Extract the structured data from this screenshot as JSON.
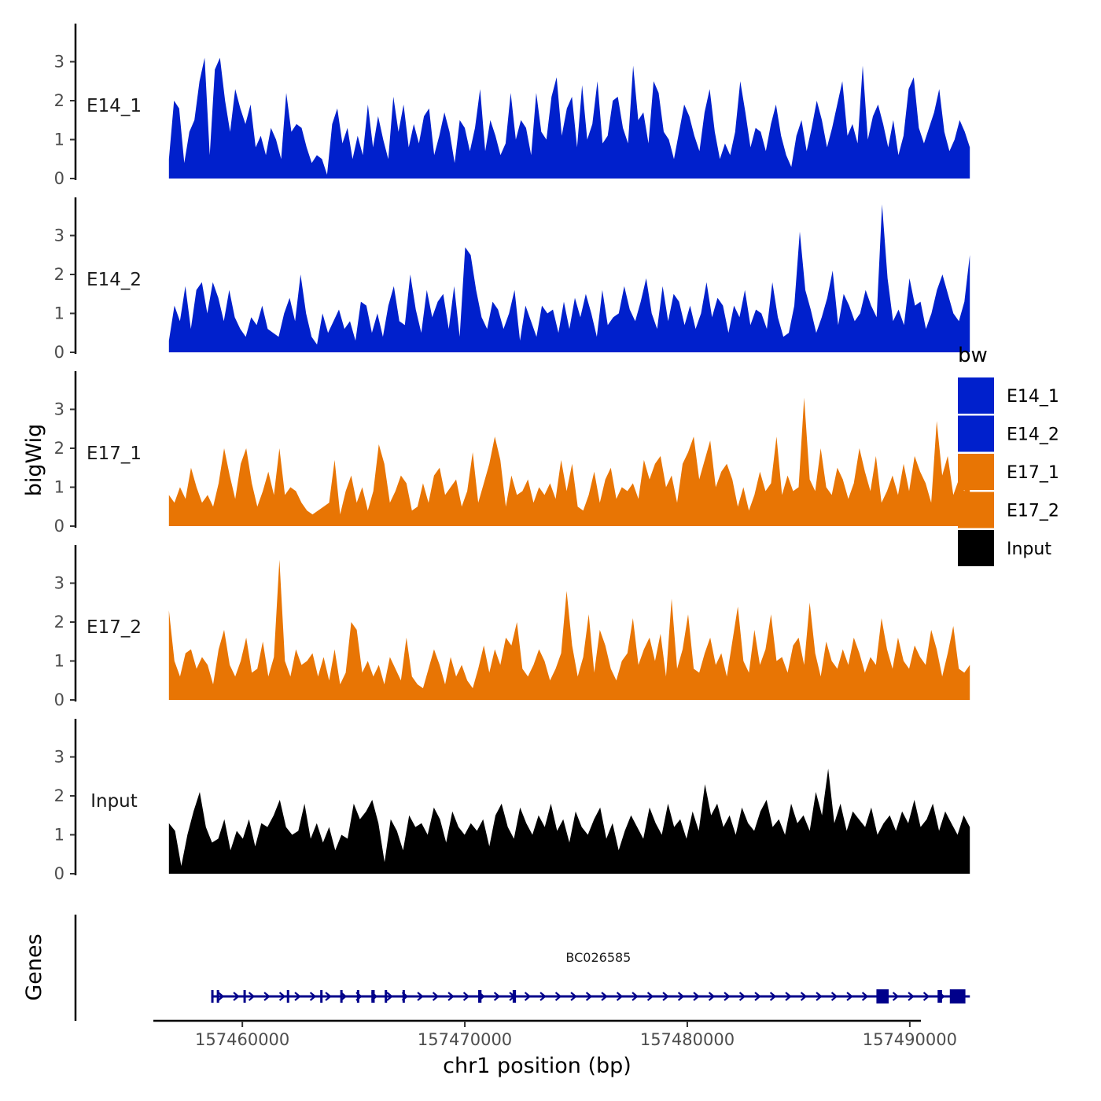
{
  "chart_data": {
    "type": "area",
    "title": "",
    "xlabel": "chr1 position (bp)",
    "ylabel": "bigWig",
    "xlim": [
      157456000,
      157490500
    ],
    "x_ticks": [
      157460000,
      157470000,
      157480000,
      157490000
    ],
    "x_tick_labels": [
      "157460000",
      "157470000",
      "157480000",
      "157490000"
    ],
    "ylim": [
      0,
      4
    ],
    "y_ticks": [
      0,
      1,
      2,
      3
    ],
    "y_tick_labels": [
      "0",
      "1",
      "2",
      "3"
    ],
    "track_range": [
      157456700,
      157492700
    ],
    "legend": {
      "title": "bw",
      "position": "right",
      "entries": [
        {
          "name": "E14_1",
          "color": "#0020CC"
        },
        {
          "name": "E14_2",
          "color": "#0020CC"
        },
        {
          "name": "E17_1",
          "color": "#E87504"
        },
        {
          "name": "E17_2",
          "color": "#E87504"
        },
        {
          "name": "Input",
          "color": "#000000"
        }
      ]
    },
    "series": [
      {
        "name": "E14_1",
        "color": "#0020CC",
        "values": [
          0.5,
          2.0,
          1.8,
          0.4,
          1.2,
          1.5,
          2.5,
          3.1,
          0.6,
          2.8,
          3.1,
          2.0,
          1.2,
          2.3,
          1.8,
          1.4,
          1.9,
          0.8,
          1.1,
          0.6,
          1.3,
          1.0,
          0.5,
          2.2,
          1.2,
          1.4,
          1.3,
          0.8,
          0.4,
          0.6,
          0.5,
          0.1,
          1.4,
          1.8,
          0.9,
          1.3,
          0.5,
          1.1,
          0.6,
          1.9,
          0.8,
          1.6,
          1.0,
          0.5,
          2.1,
          1.2,
          1.9,
          0.8,
          1.4,
          0.9,
          1.6,
          1.8,
          0.6,
          1.1,
          1.7,
          1.2,
          0.4,
          1.5,
          1.3,
          0.7,
          1.3,
          2.3,
          0.7,
          1.5,
          1.1,
          0.6,
          0.9,
          2.2,
          1.0,
          1.5,
          1.3,
          0.6,
          2.2,
          1.2,
          1.0,
          2.1,
          2.6,
          1.1,
          1.8,
          2.1,
          0.8,
          2.4,
          1.0,
          1.4,
          2.5,
          0.9,
          1.1,
          2.0,
          2.1,
          1.3,
          0.9,
          2.9,
          1.5,
          1.7,
          0.9,
          2.5,
          2.2,
          1.2,
          1.0,
          0.5,
          1.2,
          1.9,
          1.6,
          1.1,
          0.7,
          1.7,
          2.3,
          1.2,
          0.5,
          0.9,
          0.6,
          1.2,
          2.5,
          1.7,
          0.8,
          1.3,
          1.2,
          0.7,
          1.4,
          1.9,
          1.1,
          0.6,
          0.3,
          1.1,
          1.5,
          0.7,
          1.3,
          2.0,
          1.5,
          0.8,
          1.3,
          1.9,
          2.5,
          1.1,
          1.4,
          0.9,
          2.9,
          1.0,
          1.6,
          1.9,
          1.4,
          0.8,
          1.5,
          0.6,
          1.1,
          2.3,
          2.6,
          1.3,
          0.9,
          1.3,
          1.7,
          2.3,
          1.2,
          0.7,
          1.0,
          1.5,
          1.2,
          0.8
        ]
      },
      {
        "name": "E14_2",
        "color": "#0020CC",
        "values": [
          0.3,
          1.2,
          0.8,
          1.7,
          0.6,
          1.6,
          1.8,
          1.0,
          1.8,
          1.4,
          0.8,
          1.6,
          0.9,
          0.6,
          0.4,
          0.9,
          0.7,
          1.2,
          0.6,
          0.5,
          0.4,
          1.0,
          1.4,
          0.8,
          2.0,
          1.0,
          0.4,
          0.2,
          1.0,
          0.5,
          0.8,
          1.1,
          0.6,
          0.8,
          0.3,
          1.3,
          1.2,
          0.5,
          1.0,
          0.4,
          1.2,
          1.7,
          0.8,
          0.7,
          2.0,
          1.1,
          0.5,
          1.6,
          0.9,
          1.3,
          1.5,
          0.6,
          1.7,
          0.4,
          2.7,
          2.5,
          1.6,
          0.9,
          0.6,
          1.3,
          1.1,
          0.6,
          1.0,
          1.6,
          0.3,
          1.2,
          0.8,
          0.4,
          1.2,
          1.0,
          1.1,
          0.5,
          1.3,
          0.6,
          1.4,
          0.9,
          1.5,
          1.0,
          0.4,
          1.6,
          0.7,
          0.9,
          1.0,
          1.7,
          1.1,
          0.8,
          1.3,
          1.9,
          1.0,
          0.6,
          1.7,
          0.8,
          1.5,
          1.3,
          0.7,
          1.2,
          0.6,
          1.0,
          1.8,
          0.9,
          1.4,
          1.2,
          0.5,
          1.2,
          0.9,
          1.6,
          0.7,
          1.1,
          1.0,
          0.6,
          1.8,
          0.9,
          0.4,
          0.5,
          1.2,
          3.1,
          1.6,
          1.1,
          0.5,
          0.9,
          1.4,
          2.1,
          0.7,
          1.5,
          1.2,
          0.8,
          1.0,
          1.6,
          1.2,
          0.9,
          3.8,
          1.9,
          0.8,
          1.1,
          0.7,
          1.9,
          1.2,
          1.3,
          0.6,
          1.0,
          1.6,
          2.0,
          1.5,
          1.0,
          0.8,
          1.3,
          2.5
        ]
      },
      {
        "name": "E17_1",
        "color": "#E87504",
        "values": [
          0.8,
          0.6,
          1.0,
          0.7,
          1.5,
          1.0,
          0.6,
          0.8,
          0.5,
          1.1,
          2.0,
          1.3,
          0.7,
          1.6,
          2.0,
          1.1,
          0.5,
          0.9,
          1.4,
          0.8,
          2.0,
          0.8,
          1.0,
          0.9,
          0.6,
          0.4,
          0.3,
          0.4,
          0.5,
          0.6,
          1.7,
          0.3,
          0.9,
          1.3,
          0.6,
          1.0,
          0.4,
          0.9,
          2.1,
          1.6,
          0.6,
          0.9,
          1.3,
          1.1,
          0.4,
          0.5,
          1.1,
          0.6,
          1.3,
          1.5,
          0.8,
          1.0,
          1.2,
          0.5,
          0.9,
          1.9,
          0.6,
          1.1,
          1.6,
          2.3,
          1.7,
          0.5,
          1.3,
          0.8,
          0.9,
          1.2,
          0.6,
          1.0,
          0.8,
          1.1,
          0.7,
          1.7,
          0.9,
          1.6,
          0.5,
          0.4,
          0.8,
          1.4,
          0.6,
          1.2,
          1.5,
          0.7,
          1.0,
          0.9,
          1.1,
          0.7,
          1.7,
          1.2,
          1.6,
          1.8,
          1.0,
          1.3,
          0.6,
          1.6,
          1.9,
          2.3,
          1.2,
          1.7,
          2.2,
          1.0,
          1.4,
          1.6,
          1.2,
          0.5,
          1.0,
          0.4,
          0.8,
          1.4,
          0.9,
          1.1,
          2.3,
          0.8,
          1.3,
          0.9,
          1.0,
          3.3,
          1.2,
          0.9,
          2.0,
          1.0,
          0.8,
          1.5,
          1.2,
          0.7,
          1.1,
          2.0,
          1.4,
          0.9,
          1.8,
          0.6,
          0.9,
          1.3,
          0.8,
          1.6,
          0.9,
          1.8,
          1.4,
          1.1,
          0.6,
          2.7,
          1.3,
          1.8,
          0.8,
          1.2,
          0.9,
          1.7
        ]
      },
      {
        "name": "E17_2",
        "color": "#E87504",
        "values": [
          2.3,
          1.0,
          0.6,
          1.2,
          1.3,
          0.8,
          1.1,
          0.9,
          0.4,
          1.3,
          1.8,
          0.9,
          0.6,
          1.0,
          1.6,
          0.7,
          0.8,
          1.5,
          0.6,
          1.1,
          3.6,
          1.0,
          0.6,
          1.3,
          0.9,
          1.0,
          1.2,
          0.6,
          1.1,
          0.5,
          1.3,
          0.4,
          0.7,
          2.0,
          1.8,
          0.7,
          1.0,
          0.6,
          0.9,
          0.4,
          1.1,
          0.8,
          0.5,
          1.6,
          0.6,
          0.4,
          0.3,
          0.8,
          1.3,
          0.9,
          0.4,
          1.1,
          0.6,
          0.9,
          0.5,
          0.3,
          0.8,
          1.4,
          0.7,
          1.3,
          0.9,
          1.6,
          1.4,
          2.0,
          0.8,
          0.6,
          0.9,
          1.3,
          1.0,
          0.5,
          0.8,
          1.2,
          2.8,
          1.4,
          0.6,
          1.1,
          2.2,
          0.7,
          1.8,
          1.4,
          0.8,
          0.5,
          1.0,
          1.2,
          2.1,
          0.9,
          1.3,
          1.6,
          1.0,
          1.7,
          0.6,
          2.6,
          0.8,
          1.3,
          2.2,
          0.8,
          0.7,
          1.2,
          1.6,
          0.9,
          1.2,
          0.6,
          1.5,
          2.4,
          1.0,
          0.7,
          1.8,
          0.9,
          1.3,
          2.2,
          1.0,
          1.1,
          0.7,
          1.4,
          1.6,
          0.9,
          2.5,
          1.2,
          0.6,
          1.5,
          1.0,
          0.8,
          1.3,
          0.9,
          1.6,
          1.2,
          0.7,
          1.1,
          0.9,
          2.1,
          1.3,
          0.8,
          1.6,
          1.0,
          0.8,
          1.4,
          1.1,
          0.9,
          1.8,
          1.3,
          0.6,
          1.2,
          1.9,
          0.8,
          0.7,
          0.9
        ]
      },
      {
        "name": "Input",
        "color": "#000000",
        "values": [
          1.3,
          1.1,
          0.2,
          1.0,
          1.6,
          2.1,
          1.2,
          0.8,
          0.9,
          1.4,
          0.6,
          1.1,
          0.9,
          1.4,
          0.7,
          1.3,
          1.2,
          1.5,
          1.9,
          1.2,
          1.0,
          1.1,
          1.8,
          0.9,
          1.3,
          0.8,
          1.2,
          0.6,
          1.0,
          0.9,
          1.8,
          1.4,
          1.6,
          1.9,
          1.3,
          0.3,
          1.4,
          1.1,
          0.6,
          1.5,
          1.2,
          1.3,
          1.0,
          1.7,
          1.4,
          0.8,
          1.6,
          1.2,
          1.0,
          1.3,
          1.1,
          1.4,
          0.7,
          1.5,
          1.8,
          1.2,
          0.9,
          1.7,
          1.3,
          1.0,
          1.5,
          1.2,
          1.8,
          1.1,
          1.4,
          0.8,
          1.6,
          1.2,
          1.0,
          1.4,
          1.7,
          0.9,
          1.3,
          0.6,
          1.1,
          1.5,
          1.2,
          0.9,
          1.7,
          1.3,
          1.0,
          1.8,
          1.2,
          1.4,
          0.9,
          1.6,
          1.1,
          2.3,
          1.5,
          1.8,
          1.2,
          1.5,
          1.0,
          1.7,
          1.3,
          1.1,
          1.6,
          1.9,
          1.2,
          1.4,
          1.0,
          1.8,
          1.3,
          1.5,
          1.1,
          2.1,
          1.5,
          2.7,
          1.3,
          1.8,
          1.1,
          1.6,
          1.4,
          1.2,
          1.7,
          1.0,
          1.3,
          1.5,
          1.1,
          1.6,
          1.3,
          1.9,
          1.2,
          1.4,
          1.8,
          1.1,
          1.6,
          1.3,
          1.0,
          1.5,
          1.2
        ]
      }
    ],
    "gene_track": {
      "ylabel": "Genes",
      "genes": [
        {
          "name": "BC026585",
          "start": 157458600,
          "end": 157492700,
          "exons": [
            {
              "start": 157458600,
              "end": 157458700
            },
            {
              "start": 157458850,
              "end": 157458950
            },
            {
              "start": 157460050,
              "end": 157460150
            },
            {
              "start": 157462000,
              "end": 157462100
            },
            {
              "start": 157463500,
              "end": 157463600
            },
            {
              "start": 157464400,
              "end": 157464500
            },
            {
              "start": 157465150,
              "end": 157465250
            },
            {
              "start": 157465800,
              "end": 157465950
            },
            {
              "start": 157466400,
              "end": 157466500
            },
            {
              "start": 157467200,
              "end": 157467300
            },
            {
              "start": 157470600,
              "end": 157470750
            },
            {
              "start": 157472150,
              "end": 157472300
            },
            {
              "start": 157488500,
              "end": 157489050
            },
            {
              "start": 157491250,
              "end": 157491450
            },
            {
              "start": 157491800,
              "end": 157492500
            }
          ]
        }
      ]
    }
  }
}
